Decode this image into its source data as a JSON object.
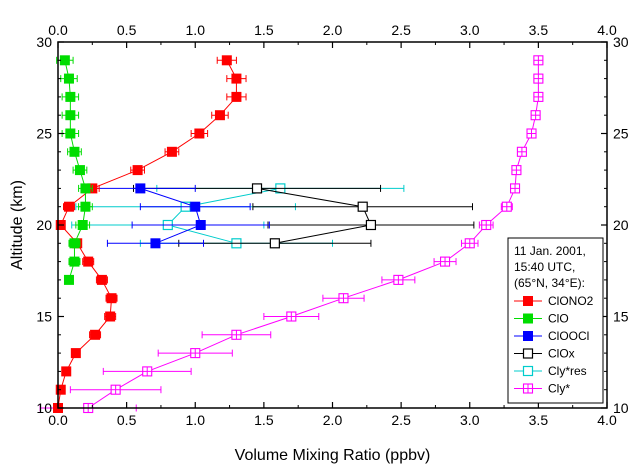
{
  "chart_data": {
    "type": "scatter",
    "xlabel": "Volume Mixing Ratio (ppbv)",
    "ylabel": "Altitude (km)",
    "xlim": [
      0.0,
      4.0
    ],
    "ylim": [
      10,
      30
    ],
    "x_ticks": [
      "0.0",
      "0.5",
      "1.0",
      "1.5",
      "2.0",
      "2.5",
      "3.0",
      "3.5",
      "4.0"
    ],
    "y_ticks": [
      "10",
      "15",
      "20",
      "25",
      "30"
    ],
    "x_tick_values": [
      0.0,
      0.5,
      1.0,
      1.5,
      2.0,
      2.5,
      3.0,
      3.5,
      4.0
    ],
    "y_tick_values": [
      10,
      15,
      20,
      25,
      30
    ],
    "grid": false,
    "mirror_axes": true,
    "legend_position": "right",
    "legend_note": [
      "11 Jan. 2001,",
      "15:40 UTC,",
      "(65°N, 34°E):"
    ],
    "series": [
      {
        "name": "ClONO2",
        "color": "#ff0000",
        "marker": "filled-square",
        "line": true,
        "points": [
          {
            "x": 0.0,
            "y": 10,
            "err": 0.02
          },
          {
            "x": 0.02,
            "y": 11,
            "err": 0.02
          },
          {
            "x": 0.06,
            "y": 12,
            "err": 0.03
          },
          {
            "x": 0.13,
            "y": 13,
            "err": 0.03
          },
          {
            "x": 0.27,
            "y": 14,
            "err": 0.04
          },
          {
            "x": 0.38,
            "y": 15,
            "err": 0.04
          },
          {
            "x": 0.39,
            "y": 16,
            "err": 0.04
          },
          {
            "x": 0.32,
            "y": 17,
            "err": 0.04
          },
          {
            "x": 0.22,
            "y": 18,
            "err": 0.04
          },
          {
            "x": 0.14,
            "y": 19,
            "err": 0.03
          },
          {
            "x": 0.02,
            "y": 20,
            "err": 0.03
          },
          {
            "x": 0.08,
            "y": 21,
            "err": 0.04
          },
          {
            "x": 0.25,
            "y": 22,
            "err": 0.05
          },
          {
            "x": 0.58,
            "y": 23,
            "err": 0.05
          },
          {
            "x": 0.83,
            "y": 24,
            "err": 0.05
          },
          {
            "x": 1.03,
            "y": 25,
            "err": 0.06
          },
          {
            "x": 1.18,
            "y": 26,
            "err": 0.06
          },
          {
            "x": 1.3,
            "y": 27,
            "err": 0.07
          },
          {
            "x": 1.3,
            "y": 28,
            "err": 0.07
          },
          {
            "x": 1.23,
            "y": 29,
            "err": 0.07
          }
        ]
      },
      {
        "name": "ClO",
        "color": "#00dd00",
        "marker": "filled-square",
        "line": true,
        "points": [
          {
            "x": 0.08,
            "y": 17,
            "err": 0.03
          },
          {
            "x": 0.12,
            "y": 18,
            "err": 0.04
          },
          {
            "x": 0.12,
            "y": 19,
            "err": 0.04
          },
          {
            "x": 0.18,
            "y": 20,
            "err": 0.05
          },
          {
            "x": 0.2,
            "y": 21,
            "err": 0.05
          },
          {
            "x": 0.2,
            "y": 22,
            "err": 0.05
          },
          {
            "x": 0.16,
            "y": 23,
            "err": 0.05
          },
          {
            "x": 0.12,
            "y": 24,
            "err": 0.05
          },
          {
            "x": 0.09,
            "y": 25,
            "err": 0.06
          },
          {
            "x": 0.09,
            "y": 26,
            "err": 0.06
          },
          {
            "x": 0.09,
            "y": 27,
            "err": 0.06
          },
          {
            "x": 0.08,
            "y": 28,
            "err": 0.06
          },
          {
            "x": 0.05,
            "y": 29,
            "err": 0.06
          }
        ]
      },
      {
        "name": "ClOOCl",
        "color": "#0000ff",
        "marker": "filled-square",
        "line": true,
        "points": [
          {
            "x": 0.71,
            "y": 19,
            "err": 0.35
          },
          {
            "x": 1.04,
            "y": 20,
            "err": 0.5
          },
          {
            "x": 1.0,
            "y": 21,
            "err": 0.4
          },
          {
            "x": 0.6,
            "y": 22,
            "err": 0.4
          }
        ]
      },
      {
        "name": "ClOx",
        "color": "#000000",
        "marker": "open-square",
        "line": true,
        "points": [
          {
            "x": 1.58,
            "y": 19,
            "err": 0.7
          },
          {
            "x": 2.28,
            "y": 20,
            "err": 0.75
          },
          {
            "x": 2.22,
            "y": 21,
            "err": 0.8
          },
          {
            "x": 1.45,
            "y": 22,
            "err": 0.9
          }
        ]
      },
      {
        "name": "Cly*res",
        "color": "#00cccc",
        "marker": "open-square",
        "line": true,
        "points": [
          {
            "x": 1.3,
            "y": 19,
            "err": 0.7
          },
          {
            "x": 0.8,
            "y": 20,
            "err": 0.7
          },
          {
            "x": 0.93,
            "y": 21,
            "err": 0.8
          },
          {
            "x": 1.62,
            "y": 22,
            "err": 0.9
          }
        ]
      },
      {
        "name": "Cly*",
        "color": "#ff00ff",
        "marker": "open-crossed-square",
        "line": true,
        "points": [
          {
            "x": 0.22,
            "y": 10,
            "err": 0.35
          },
          {
            "x": 0.42,
            "y": 11,
            "err": 0.33
          },
          {
            "x": 0.65,
            "y": 12,
            "err": 0.32
          },
          {
            "x": 1.0,
            "y": 13,
            "err": 0.27
          },
          {
            "x": 1.3,
            "y": 14,
            "err": 0.25
          },
          {
            "x": 1.7,
            "y": 15,
            "err": 0.2
          },
          {
            "x": 2.08,
            "y": 16,
            "err": 0.15
          },
          {
            "x": 2.48,
            "y": 17,
            "err": 0.12
          },
          {
            "x": 2.82,
            "y": 18,
            "err": 0.08
          },
          {
            "x": 3.0,
            "y": 19,
            "err": 0.06
          },
          {
            "x": 3.12,
            "y": 20,
            "err": 0.05
          },
          {
            "x": 3.27,
            "y": 21,
            "err": 0.04
          },
          {
            "x": 3.33,
            "y": 22,
            "err": 0.03
          },
          {
            "x": 3.34,
            "y": 23,
            "err": 0.03
          },
          {
            "x": 3.38,
            "y": 24,
            "err": 0.03
          },
          {
            "x": 3.45,
            "y": 25,
            "err": 0.03
          },
          {
            "x": 3.48,
            "y": 26,
            "err": 0.03
          },
          {
            "x": 3.5,
            "y": 27,
            "err": 0.03
          },
          {
            "x": 3.5,
            "y": 28,
            "err": 0.03
          },
          {
            "x": 3.5,
            "y": 29,
            "err": 0.03
          }
        ]
      }
    ]
  }
}
